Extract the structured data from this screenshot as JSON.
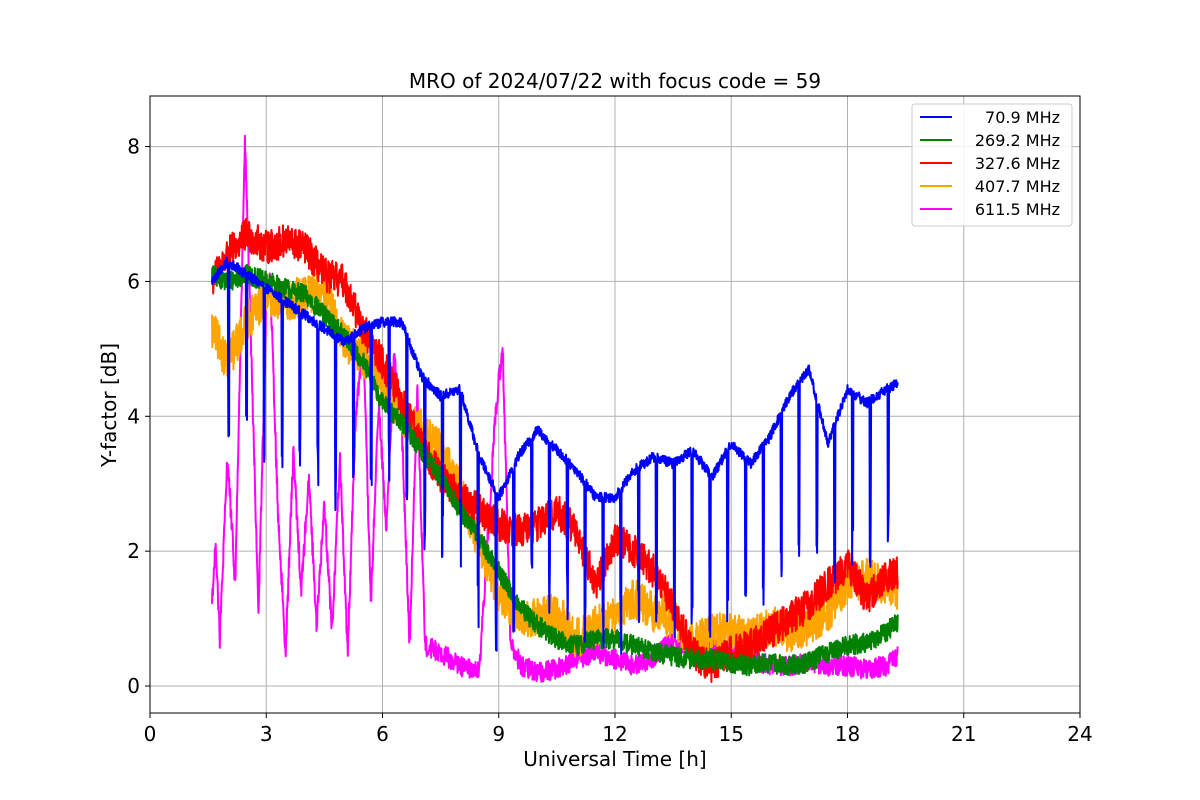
{
  "chart_data": {
    "type": "line",
    "title": "MRO of 2024/07/22 with focus code = 59",
    "xlabel": "Universal Time [h]",
    "ylabel": "Y-factor [dB]",
    "xlim": [
      0,
      24
    ],
    "ylim": [
      -0.4,
      8.75
    ],
    "xticks": [
      0,
      3,
      6,
      9,
      12,
      15,
      18,
      21,
      24
    ],
    "yticks": [
      0,
      2,
      4,
      6,
      8
    ],
    "grid": true,
    "legend_position": "top-right",
    "series": [
      {
        "name": "70.9 MHz",
        "color": "#0000ff",
        "x": [
          1.6,
          2.0,
          2.5,
          3.0,
          3.5,
          4.0,
          4.5,
          5.0,
          5.5,
          6.0,
          6.5,
          7.0,
          7.5,
          8.0,
          8.5,
          9.0,
          9.5,
          10.0,
          10.5,
          11.0,
          11.5,
          12.0,
          12.5,
          13.0,
          13.5,
          14.0,
          14.5,
          15.0,
          15.5,
          16.0,
          16.5,
          17.0,
          17.5,
          18.0,
          18.5,
          19.0,
          19.3
        ],
        "y": [
          6.0,
          6.3,
          6.1,
          5.9,
          5.7,
          5.5,
          5.3,
          5.1,
          5.3,
          5.4,
          5.4,
          4.6,
          4.3,
          4.4,
          3.4,
          2.8,
          3.4,
          3.8,
          3.5,
          3.2,
          2.8,
          2.8,
          3.2,
          3.4,
          3.3,
          3.5,
          3.1,
          3.6,
          3.3,
          3.7,
          4.3,
          4.7,
          3.6,
          4.4,
          4.2,
          4.4,
          4.5
        ],
        "dips": {
          "period": 0.46,
          "depth": 2.6,
          "floor": 0.0
        }
      },
      {
        "name": "269.2 MHz",
        "color": "#008000",
        "x": [
          1.6,
          2.0,
          2.5,
          3.0,
          3.5,
          4.0,
          4.5,
          5.0,
          5.5,
          6.0,
          6.5,
          7.0,
          7.5,
          8.0,
          8.5,
          9.0,
          9.5,
          10.0,
          10.5,
          11.0,
          11.5,
          12.0,
          12.5,
          13.0,
          13.5,
          14.0,
          14.5,
          15.0,
          15.5,
          16.0,
          16.5,
          17.0,
          17.5,
          18.0,
          18.5,
          19.0,
          19.3
        ],
        "y": [
          6.1,
          6.0,
          6.1,
          6.0,
          5.9,
          5.8,
          5.5,
          5.2,
          4.8,
          4.2,
          3.9,
          3.5,
          3.1,
          2.6,
          2.2,
          1.7,
          1.2,
          0.9,
          0.7,
          0.6,
          0.7,
          0.7,
          0.6,
          0.5,
          0.45,
          0.4,
          0.4,
          0.35,
          0.3,
          0.35,
          0.3,
          0.35,
          0.5,
          0.6,
          0.65,
          0.8,
          0.95
        ],
        "noise": 0.15
      },
      {
        "name": "327.6 MHz",
        "color": "#ff0000",
        "x": [
          1.6,
          2.0,
          2.5,
          3.0,
          3.5,
          4.0,
          4.5,
          5.0,
          5.5,
          6.0,
          6.5,
          7.0,
          7.5,
          8.0,
          8.5,
          9.0,
          9.5,
          10.0,
          10.5,
          11.0,
          11.5,
          12.0,
          12.5,
          13.0,
          13.5,
          14.0,
          14.5,
          15.0,
          15.5,
          16.0,
          16.5,
          17.0,
          17.5,
          18.0,
          18.5,
          19.0,
          19.3
        ],
        "y": [
          6.0,
          6.4,
          6.7,
          6.5,
          6.6,
          6.5,
          6.1,
          6.0,
          5.3,
          4.8,
          4.2,
          3.6,
          3.1,
          2.8,
          2.6,
          2.4,
          2.3,
          2.4,
          2.6,
          2.3,
          1.5,
          2.2,
          2.0,
          1.7,
          1.2,
          0.5,
          0.3,
          0.5,
          0.6,
          0.8,
          1.0,
          1.2,
          1.5,
          1.8,
          1.3,
          1.6,
          1.7
        ],
        "noise": 0.25
      },
      {
        "name": "407.7 MHz",
        "color": "#ffa500",
        "x": [
          1.6,
          2.0,
          2.5,
          3.0,
          3.5,
          4.0,
          4.5,
          5.0,
          5.5,
          6.0,
          6.5,
          7.0,
          7.5,
          8.0,
          8.5,
          9.0,
          9.5,
          10.0,
          10.5,
          11.0,
          11.5,
          12.0,
          12.5,
          13.0,
          13.5,
          14.0,
          14.5,
          15.0,
          15.5,
          16.0,
          16.5,
          17.0,
          17.5,
          18.0,
          18.5,
          19.0,
          19.3
        ],
        "y": [
          5.3,
          4.8,
          5.4,
          5.8,
          5.7,
          5.8,
          5.9,
          5.1,
          4.9,
          4.5,
          4.0,
          3.8,
          3.5,
          2.9,
          2.1,
          1.4,
          1.0,
          1.0,
          1.1,
          0.7,
          0.9,
          1.0,
          1.3,
          1.1,
          1.0,
          0.6,
          0.8,
          0.8,
          0.7,
          0.9,
          0.8,
          0.9,
          1.1,
          1.5,
          1.6,
          1.5,
          1.4
        ],
        "noise": 0.3
      },
      {
        "name": "611.5 MHz",
        "color": "#ff00ff",
        "x": [
          1.6,
          1.7,
          1.8,
          2.0,
          2.2,
          2.45,
          2.6,
          2.8,
          3.0,
          3.1,
          3.3,
          3.5,
          3.7,
          3.9,
          4.1,
          4.3,
          4.5,
          4.7,
          4.9,
          5.1,
          5.3,
          5.5,
          5.7,
          5.9,
          6.1,
          6.3,
          6.5,
          6.7,
          6.9,
          7.1,
          7.5,
          8.0,
          8.5,
          8.9,
          9.1,
          9.3,
          9.6,
          10.0,
          10.5,
          11.0,
          11.5,
          12.0,
          12.5,
          13.0,
          13.5,
          14.0,
          14.5,
          15.0,
          15.5,
          16.0,
          16.5,
          17.0,
          17.5,
          18.0,
          18.5,
          19.0,
          19.3
        ],
        "y": [
          1.3,
          2.1,
          0.7,
          3.4,
          1.5,
          8.1,
          5.2,
          1.1,
          5.6,
          6.1,
          2.6,
          0.5,
          3.5,
          1.4,
          3.1,
          0.9,
          2.7,
          0.8,
          3.4,
          0.5,
          3.9,
          5.2,
          1.2,
          4.2,
          2.3,
          4.9,
          3.8,
          0.6,
          4.4,
          0.6,
          0.5,
          0.3,
          0.2,
          3.9,
          5.1,
          0.6,
          0.3,
          0.2,
          0.25,
          0.4,
          0.5,
          0.4,
          0.3,
          0.4,
          0.7,
          0.5,
          0.6,
          0.5,
          0.4,
          0.3,
          0.3,
          0.35,
          0.3,
          0.3,
          0.25,
          0.3,
          0.45
        ],
        "noise": 0.15
      }
    ]
  }
}
